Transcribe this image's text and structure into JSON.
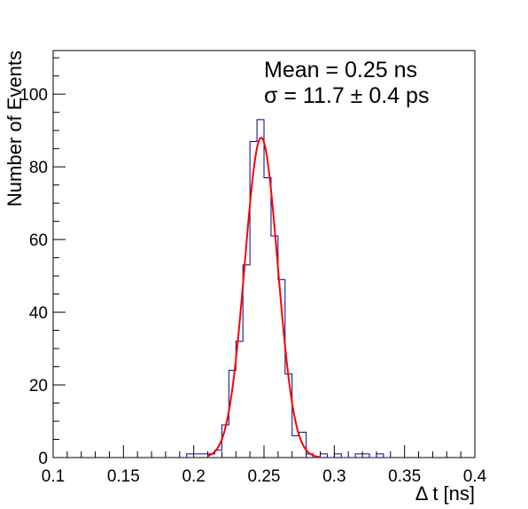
{
  "chart_data": {
    "type": "histogram",
    "xlabel": "Δ t [ns]",
    "ylabel": "Number of Events",
    "xlim": [
      0.1,
      0.4
    ],
    "ylim": [
      0,
      112
    ],
    "x_ticks": [
      "0.1",
      "0.15",
      "0.2",
      "0.25",
      "0.3",
      "0.35",
      "0.4"
    ],
    "x_tick_values": [
      0.1,
      0.15,
      0.2,
      0.25,
      0.3,
      0.35,
      0.4
    ],
    "y_ticks": [
      "0",
      "20",
      "40",
      "60",
      "80",
      "100"
    ],
    "y_tick_values": [
      0,
      20,
      40,
      60,
      80,
      100
    ],
    "bin_width": 0.005,
    "bin_low_edges": [
      0.195,
      0.2,
      0.205,
      0.21,
      0.215,
      0.22,
      0.225,
      0.23,
      0.235,
      0.24,
      0.245,
      0.25,
      0.255,
      0.26,
      0.265,
      0.27,
      0.275,
      0.28,
      0.285,
      0.29,
      0.295,
      0.3,
      0.305,
      0.31,
      0.315,
      0.32,
      0.325,
      0.33,
      0.335
    ],
    "counts": [
      1,
      1,
      1,
      1,
      2,
      9,
      24,
      32,
      53,
      87,
      93,
      77,
      61,
      49,
      23,
      6,
      7,
      1,
      0,
      1,
      0,
      1,
      0,
      0,
      1,
      1,
      0,
      1,
      0
    ],
    "fit": {
      "type": "gaussian",
      "mean": 0.248,
      "sigma": 0.0117,
      "amplitude": 88,
      "x_range": [
        0.21,
        0.29
      ],
      "color": "#ff0000"
    },
    "hist_color": "#000080",
    "annotations": [
      "Mean = 0.25 ns",
      "σ = 11.7 ± 0.4 ps"
    ]
  }
}
